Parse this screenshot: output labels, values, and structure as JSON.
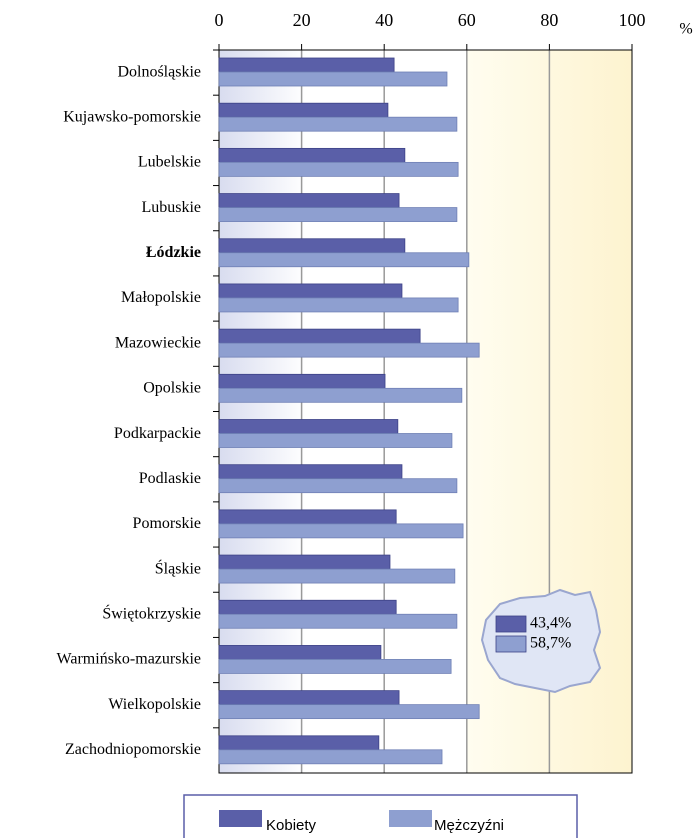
{
  "chart_data": {
    "type": "bar",
    "orientation": "horizontal",
    "unit_label": "%",
    "categories": [
      "Dolnośląskie",
      "Kujawsko-pomorskie",
      "Lubelskie",
      "Lubuskie",
      "Łódzkie",
      "Małopolskie",
      "Mazowieckie",
      "Opolskie",
      "Podkarpackie",
      "Podlaskie",
      "Pomorskie",
      "Śląskie",
      "Świętokrzyskie",
      "Warmińsko-mazurskie",
      "Wielkopolskie",
      "Zachodniopomorskie"
    ],
    "bold_categories": [
      4
    ],
    "series": [
      {
        "name": "Kobiety",
        "color": "#5a5fa8",
        "values": [
          42.4,
          40.9,
          45.0,
          43.6,
          45.0,
          44.3,
          48.7,
          40.2,
          43.3,
          44.3,
          42.9,
          41.4,
          42.9,
          39.2,
          43.6,
          38.7
        ]
      },
      {
        "name": "Mężczyźni",
        "color": "#8e9fd0",
        "values": [
          55.2,
          57.6,
          57.9,
          57.6,
          60.5,
          57.9,
          63.0,
          58.8,
          56.4,
          57.6,
          59.1,
          57.1,
          57.6,
          56.2,
          63.0,
          54.0
        ]
      }
    ],
    "annotations": [
      "43,4%",
      "58,7%"
    ],
    "xlim": [
      0,
      100
    ],
    "xticks": [
      0,
      20,
      40,
      60,
      80,
      100
    ],
    "grid": true,
    "legend": "bottom"
  }
}
